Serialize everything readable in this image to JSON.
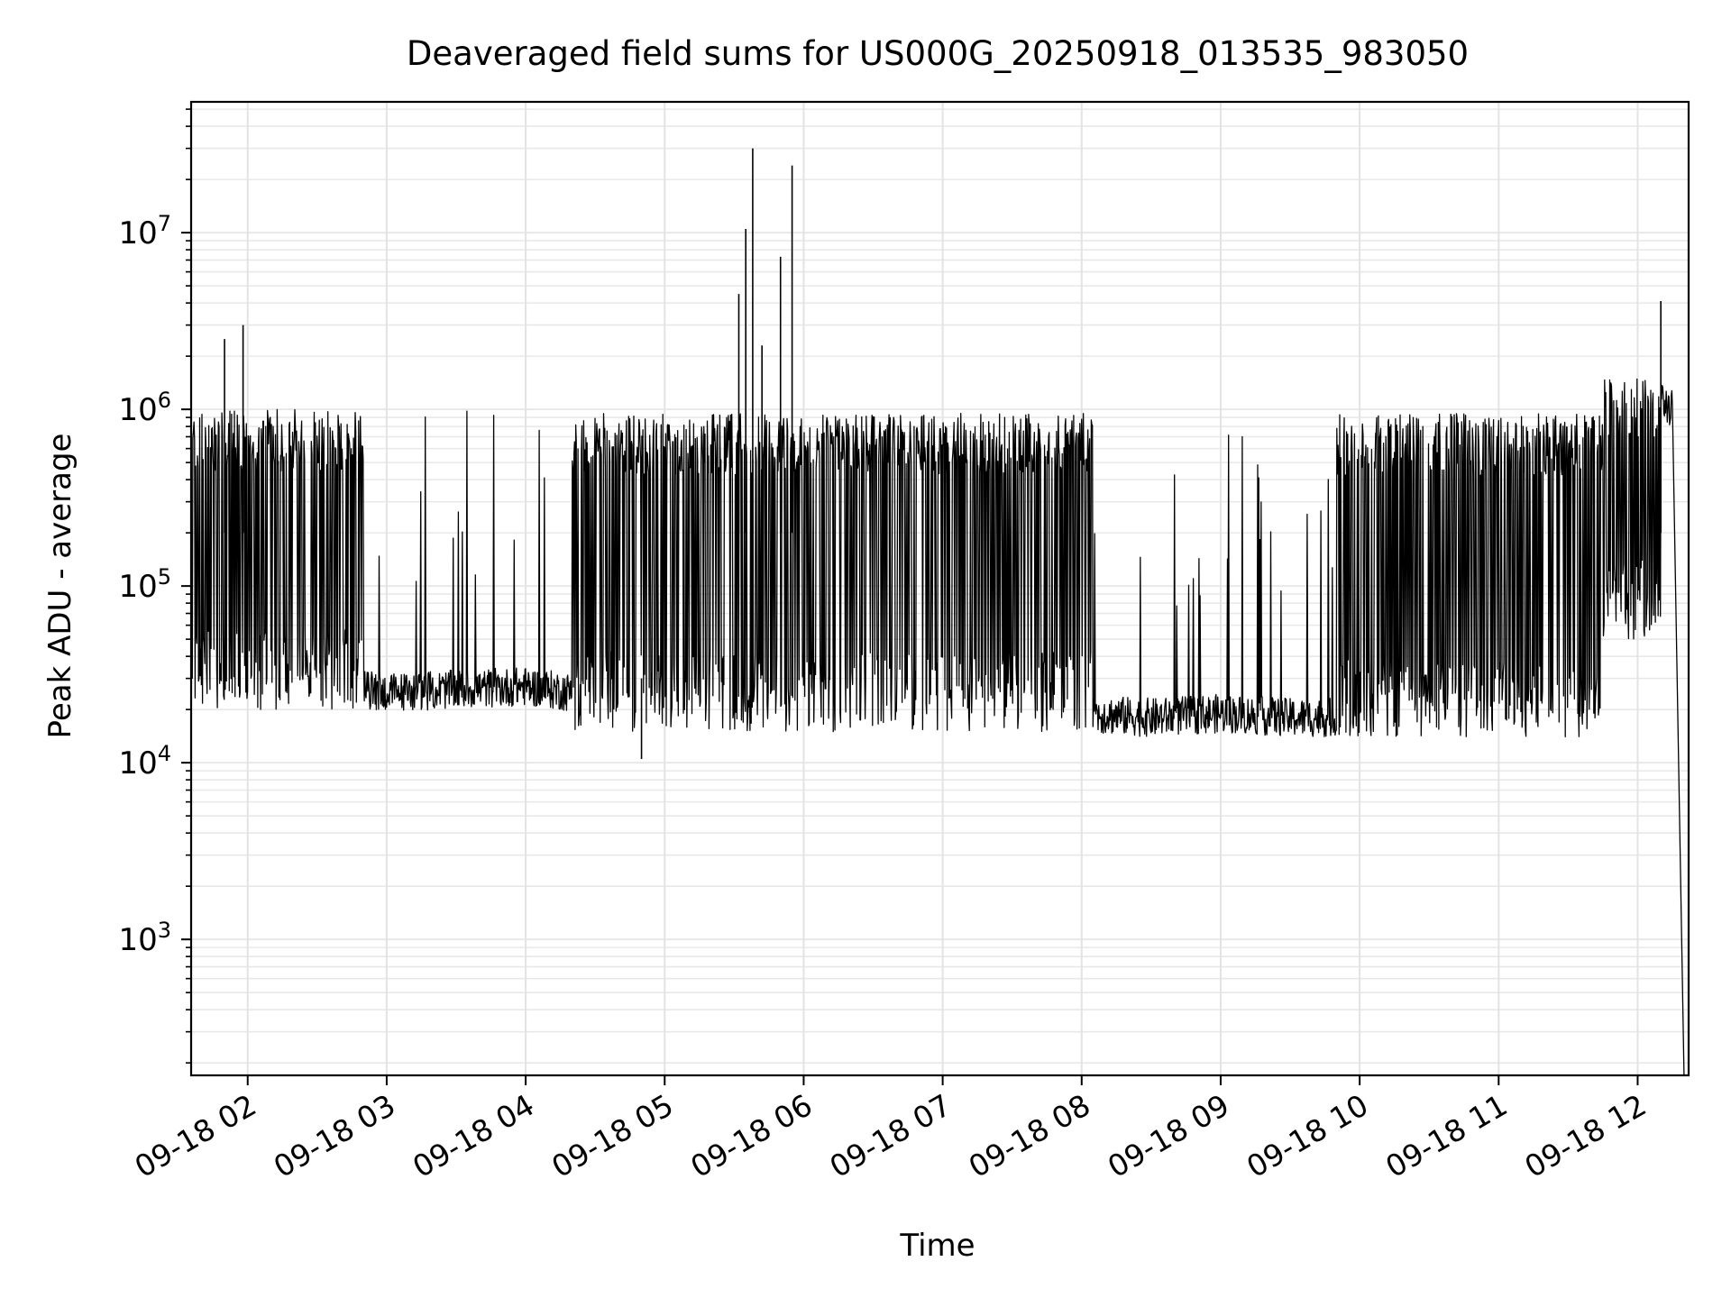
{
  "chart_data": {
    "type": "line",
    "title": "Deaveraged field sums for US000G_20250918_013535_983050",
    "xlabel": "Time",
    "ylabel": "Peak ADU - average",
    "x_range": [
      "2025-09-18T01:35:35",
      "2025-09-18T12:22:00"
    ],
    "ylim": [
      170,
      55000000
    ],
    "yscale": "log",
    "grid": true,
    "legend": "none",
    "x_tick_labels": [
      {
        "time": "2025-09-18T02:00",
        "label": "09-18 02"
      },
      {
        "time": "2025-09-18T03:00",
        "label": "09-18 03"
      },
      {
        "time": "2025-09-18T04:00",
        "label": "09-18 04"
      },
      {
        "time": "2025-09-18T05:00",
        "label": "09-18 05"
      },
      {
        "time": "2025-09-18T06:00",
        "label": "09-18 06"
      },
      {
        "time": "2025-09-18T07:00",
        "label": "09-18 07"
      },
      {
        "time": "2025-09-18T08:00",
        "label": "09-18 08"
      },
      {
        "time": "2025-09-18T09:00",
        "label": "09-18 09"
      },
      {
        "time": "2025-09-18T10:00",
        "label": "09-18 10"
      },
      {
        "time": "2025-09-18T11:00",
        "label": "09-18 11"
      },
      {
        "time": "2025-09-18T12:00",
        "label": "09-18 12"
      }
    ],
    "y_tick_labels": [
      {
        "value": 1000,
        "base": "10",
        "exp": "3"
      },
      {
        "value": 10000,
        "base": "10",
        "exp": "4"
      },
      {
        "value": 100000,
        "base": "10",
        "exp": "5"
      },
      {
        "value": 1000000,
        "base": "10",
        "exp": "6"
      },
      {
        "value": 10000000,
        "base": "10",
        "exp": "7"
      }
    ],
    "series": [
      {
        "color": "#000000",
        "baseline_points": [
          {
            "t": "2025-09-18T01:35",
            "y": 600000
          },
          {
            "t": "2025-09-18T01:50",
            "y": 1100000
          },
          {
            "t": "2025-09-18T02:00",
            "y": 450000
          },
          {
            "t": "2025-09-18T02:10",
            "y": 150000
          },
          {
            "t": "2025-09-18T02:20",
            "y": 40000
          },
          {
            "t": "2025-09-18T02:30",
            "y": 28000
          },
          {
            "t": "2025-09-18T03:00",
            "y": 25000
          },
          {
            "t": "2025-09-18T03:30",
            "y": 26000
          },
          {
            "t": "2025-09-18T04:00",
            "y": 27000
          },
          {
            "t": "2025-09-18T04:20",
            "y": 25000
          },
          {
            "t": "2025-09-18T05:00",
            "y": 22000
          },
          {
            "t": "2025-09-18T06:00",
            "y": 21000
          },
          {
            "t": "2025-09-18T07:00",
            "y": 20000
          },
          {
            "t": "2025-09-18T08:00",
            "y": 19000
          },
          {
            "t": "2025-09-18T08:30",
            "y": 18000
          },
          {
            "t": "2025-09-18T09:00",
            "y": 19000
          },
          {
            "t": "2025-09-18T09:30",
            "y": 18000
          },
          {
            "t": "2025-09-18T10:00",
            "y": 18000
          },
          {
            "t": "2025-09-18T10:30",
            "y": 18000
          },
          {
            "t": "2025-09-18T11:00",
            "y": 17000
          },
          {
            "t": "2025-09-18T11:30",
            "y": 18000
          },
          {
            "t": "2025-09-18T11:45",
            "y": 30000
          },
          {
            "t": "2025-09-18T11:55",
            "y": 500000
          },
          {
            "t": "2025-09-18T12:05",
            "y": 1300000
          },
          {
            "t": "2025-09-18T12:15",
            "y": 1000000
          },
          {
            "t": "2025-09-18T12:20",
            "y": 170
          }
        ],
        "dense_bands": [
          {
            "start": "2025-09-18T01:35",
            "end": "2025-09-18T02:50",
            "low": 20000,
            "high": 1000000
          },
          {
            "start": "2025-09-18T04:20",
            "end": "2025-09-18T08:05",
            "low": 15000,
            "high": 950000
          },
          {
            "start": "2025-09-18T09:50",
            "end": "2025-09-18T11:45",
            "low": 14000,
            "high": 950000
          },
          {
            "start": "2025-09-18T11:45",
            "end": "2025-09-18T12:10",
            "low": 50000,
            "high": 1500000
          }
        ],
        "peaks": [
          {
            "t": "2025-09-18T01:50",
            "y": 2500000
          },
          {
            "t": "2025-09-18T01:58",
            "y": 3000000
          },
          {
            "t": "2025-09-18T05:32",
            "y": 4500000
          },
          {
            "t": "2025-09-18T05:35",
            "y": 10500000
          },
          {
            "t": "2025-09-18T05:38",
            "y": 30000000
          },
          {
            "t": "2025-09-18T05:42",
            "y": 2300000
          },
          {
            "t": "2025-09-18T05:50",
            "y": 7300000
          },
          {
            "t": "2025-09-18T05:55",
            "y": 24000000
          },
          {
            "t": "2025-09-18T12:10",
            "y": 4100000
          }
        ],
        "dips": [
          {
            "t": "2025-09-18T04:50",
            "y": 10500
          }
        ]
      }
    ]
  }
}
